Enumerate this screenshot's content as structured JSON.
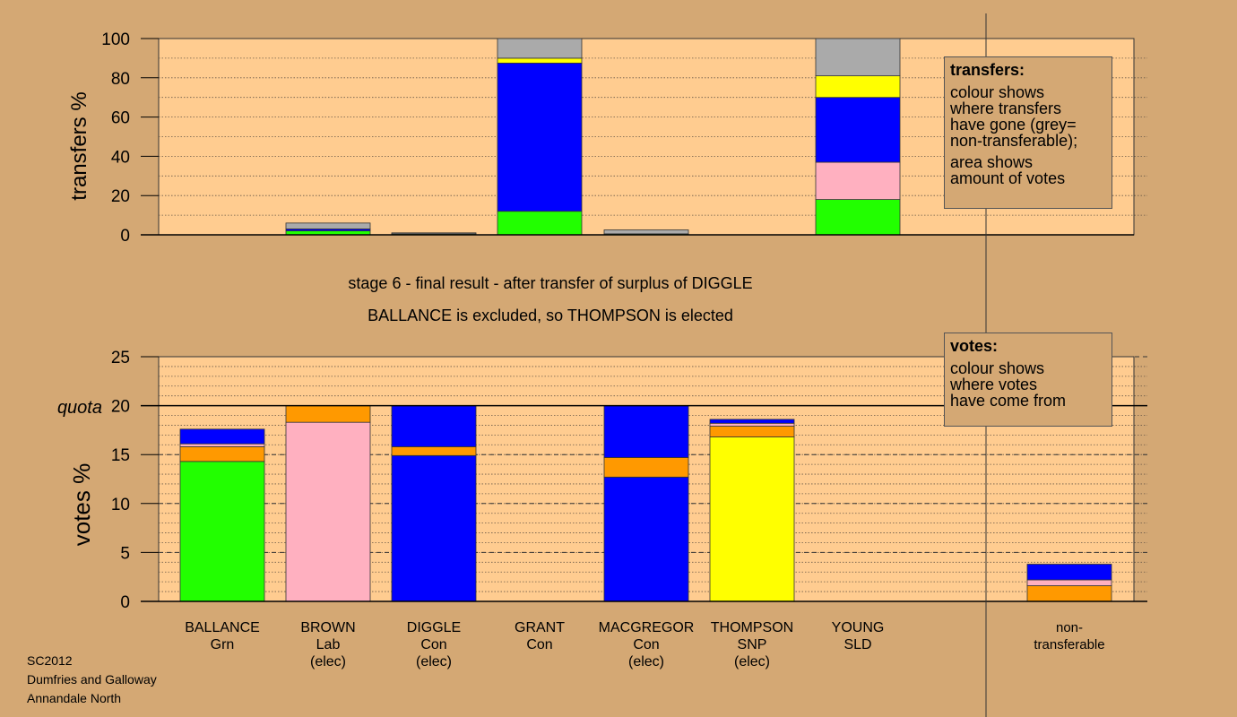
{
  "chart_data": [
    {
      "type": "bar",
      "stacked": true,
      "ylabel": "transfers %",
      "ylim": [
        0,
        100
      ],
      "yticks": [
        0,
        20,
        40,
        60,
        80,
        100
      ],
      "categories": [
        "BALLANCE",
        "BROWN",
        "DIGGLE",
        "GRANT",
        "MACGREGOR",
        "THOMPSON",
        "YOUNG"
      ],
      "bars": [
        [],
        [
          {
            "color": "#22ff00",
            "value": 2
          },
          {
            "color": "#0000ff",
            "value": 1
          },
          {
            "color": "#aaaaaa",
            "value": 3
          }
        ],
        [
          {
            "color": "#22ff00",
            "value": 0.5
          },
          {
            "color": "#aaaaaa",
            "value": 0.5
          }
        ],
        [
          {
            "color": "#22ff00",
            "value": 12
          },
          {
            "color": "#0000ff",
            "value": 75.5
          },
          {
            "color": "#ffff00",
            "value": 2.5
          },
          {
            "color": "#aaaaaa",
            "value": 10
          }
        ],
        [
          {
            "color": "#22ff00",
            "value": 0.5
          },
          {
            "color": "#aaaaaa",
            "value": 2
          }
        ],
        [],
        [
          {
            "color": "#22ff00",
            "value": 18
          },
          {
            "color": "#ffb0c0",
            "value": 19
          },
          {
            "color": "#0000ff",
            "value": 33
          },
          {
            "color": "#ffff00",
            "value": 11
          },
          {
            "color": "#aaaaaa",
            "value": 19
          }
        ]
      ]
    },
    {
      "type": "bar",
      "stacked": true,
      "ylabel": "votes %",
      "ylim": [
        0,
        25
      ],
      "yticks": [
        0,
        5,
        10,
        15,
        20,
        25
      ],
      "quota": 20,
      "quota_label": "quota",
      "categories": [
        "BALLANCE",
        "BROWN",
        "DIGGLE",
        "GRANT",
        "MACGREGOR",
        "THOMPSON",
        "YOUNG",
        "non-transferable"
      ],
      "bars": [
        [
          {
            "color": "#22ff00",
            "value": 14.3
          },
          {
            "color": "#ff9900",
            "value": 1.5
          },
          {
            "color": "#ffb0c0",
            "value": 0.3
          },
          {
            "color": "#0000ff",
            "value": 1.5
          }
        ],
        [
          {
            "color": "#ffb0c0",
            "value": 18.3
          },
          {
            "color": "#ff9900",
            "value": 1.7
          }
        ],
        [
          {
            "color": "#0000ff",
            "value": 14.9
          },
          {
            "color": "#ff9900",
            "value": 0.9
          },
          {
            "color": "#0000ff",
            "value": 4.2
          }
        ],
        [],
        [
          {
            "color": "#0000ff",
            "value": 12.7
          },
          {
            "color": "#ff9900",
            "value": 2
          },
          {
            "color": "#0000ff",
            "value": 5.3
          }
        ],
        [
          {
            "color": "#ffff00",
            "value": 16.8
          },
          {
            "color": "#ff9900",
            "value": 1.1
          },
          {
            "color": "#ffb0c0",
            "value": 0.3
          },
          {
            "color": "#0000ff",
            "value": 0.4
          }
        ],
        [],
        [
          {
            "color": "#ff9900",
            "value": 1.6
          },
          {
            "color": "#ffb0c0",
            "value": 0.6
          },
          {
            "color": "#0000ff",
            "value": 1.6
          }
        ]
      ]
    }
  ],
  "candidates": [
    {
      "name": "BALLANCE",
      "party": "Grn",
      "status": ""
    },
    {
      "name": "BROWN",
      "party": "Lab",
      "status": "(elec)"
    },
    {
      "name": "DIGGLE",
      "party": "Con",
      "status": "(elec)"
    },
    {
      "name": "GRANT",
      "party": "Con",
      "status": ""
    },
    {
      "name": "MACGREGOR",
      "party": "Con",
      "status": "(elec)"
    },
    {
      "name": "THOMPSON",
      "party": "SNP",
      "status": "(elec)"
    },
    {
      "name": "YOUNG",
      "party": "SLD",
      "status": ""
    },
    {
      "name": "non-",
      "party": "transferable",
      "status": ""
    }
  ],
  "stage_line1": "stage 6 - final result - after transfer of surplus of DIGGLE",
  "stage_line2": "BALLANCE is excluded, so THOMPSON is elected",
  "transfers_box": {
    "title": "transfers:",
    "lines": [
      "colour shows",
      "where transfers",
      "have gone (grey=",
      "non-transferable);"
    ],
    "lines2": [
      "area shows",
      "amount of votes"
    ]
  },
  "votes_box": {
    "title": "votes:",
    "lines": [
      "colour shows",
      "where votes",
      "have come from"
    ]
  },
  "credit": [
    "SC2012",
    "Dumfries and Galloway",
    "Annandale North"
  ]
}
